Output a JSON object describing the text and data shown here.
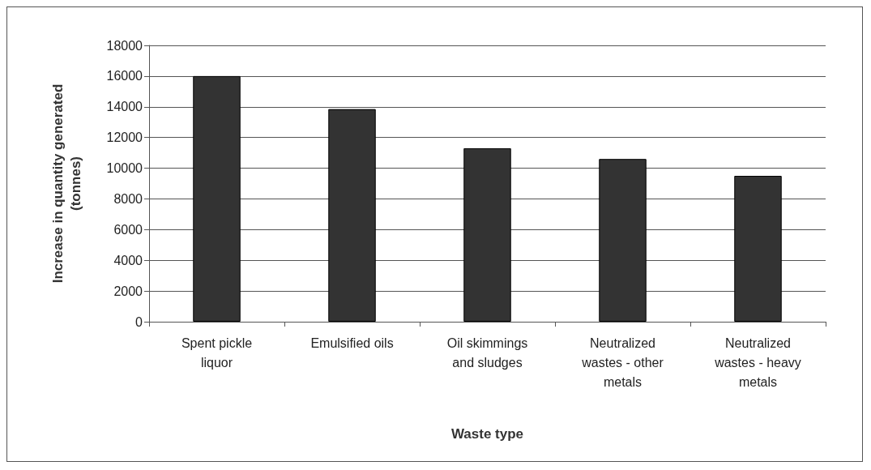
{
  "chart_data": {
    "type": "bar",
    "xlabel": "Waste type",
    "ylabel": "Increase in quantity generated\n(tonnes)",
    "categories": [
      "Spent pickle\nliquor",
      "Emulsified oils",
      "Oil skimmings\nand sludges",
      "Neutralized\nwastes - other\nmetals",
      "Neutralized\nwastes - heavy\nmetals"
    ],
    "values": [
      16000,
      13850,
      11300,
      10600,
      9500
    ],
    "color": "#333333",
    "ylim": [
      0,
      18000
    ],
    "yticks": [
      0,
      2000,
      4000,
      6000,
      8000,
      10000,
      12000,
      14000,
      16000,
      18000
    ],
    "grid": "y"
  }
}
